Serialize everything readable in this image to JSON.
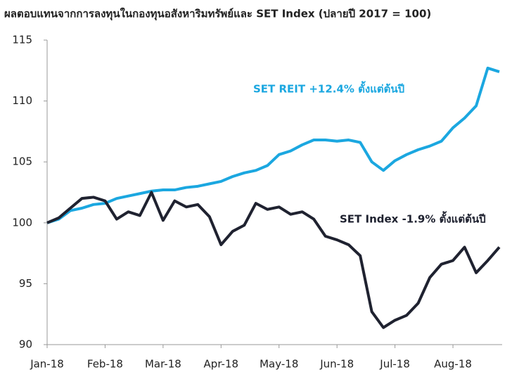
{
  "chart_data": {
    "type": "line",
    "title": "ผลตอบแทนจากการลงทุนในกองทุนอสังหาริมทรัพย์และ SET Index  (ปลายปี 2017 = 100)",
    "categories": [
      "Jan-18",
      null,
      null,
      null,
      null,
      "Feb-18",
      null,
      null,
      null,
      null,
      "Mar-18",
      null,
      null,
      null,
      null,
      "Apr-18",
      null,
      null,
      null,
      null,
      "May-18",
      null,
      null,
      null,
      null,
      "Jun-18",
      null,
      null,
      null,
      null,
      "Jul-18",
      null,
      null,
      null,
      null,
      "Aug-18",
      null,
      null,
      null,
      null
    ],
    "series": [
      {
        "name": "SET REIT",
        "color": "#1ba7e0",
        "values": [
          100,
          100.3,
          101,
          101.2,
          101.5,
          101.6,
          102,
          102.2,
          102.4,
          102.6,
          102.7,
          102.7,
          102.9,
          103,
          103.2,
          103.4,
          103.8,
          104.1,
          104.3,
          104.7,
          105.6,
          105.9,
          106.4,
          106.8,
          106.8,
          106.7,
          106.8,
          106.6,
          105,
          104.3,
          105.1,
          105.6,
          106,
          106.3,
          106.7,
          107.8,
          108.6,
          109.6,
          112.7,
          112.4
        ]
      },
      {
        "name": "SET Index",
        "color": "#1f2230",
        "values": [
          100,
          100.4,
          101.2,
          102,
          102.1,
          101.8,
          100.3,
          100.9,
          100.6,
          102.5,
          100.2,
          101.8,
          101.3,
          101.5,
          100.5,
          98.2,
          99.3,
          99.8,
          101.6,
          101.1,
          101.3,
          100.7,
          100.9,
          100.3,
          98.9,
          98.6,
          98.2,
          97.3,
          92.7,
          91.4,
          92,
          92.4,
          93.4,
          95.5,
          96.6,
          96.9,
          98,
          95.9,
          96.9,
          98
        ]
      }
    ],
    "annotations": [
      "SET REIT +12.4% ตั้งแต่ต้นปี",
      "SET Index -1.9% ตั้งแต่ต้นปี"
    ],
    "ylim": [
      90,
      115
    ],
    "yticks": [
      90,
      95,
      100,
      105,
      110,
      115
    ],
    "grid": false
  }
}
